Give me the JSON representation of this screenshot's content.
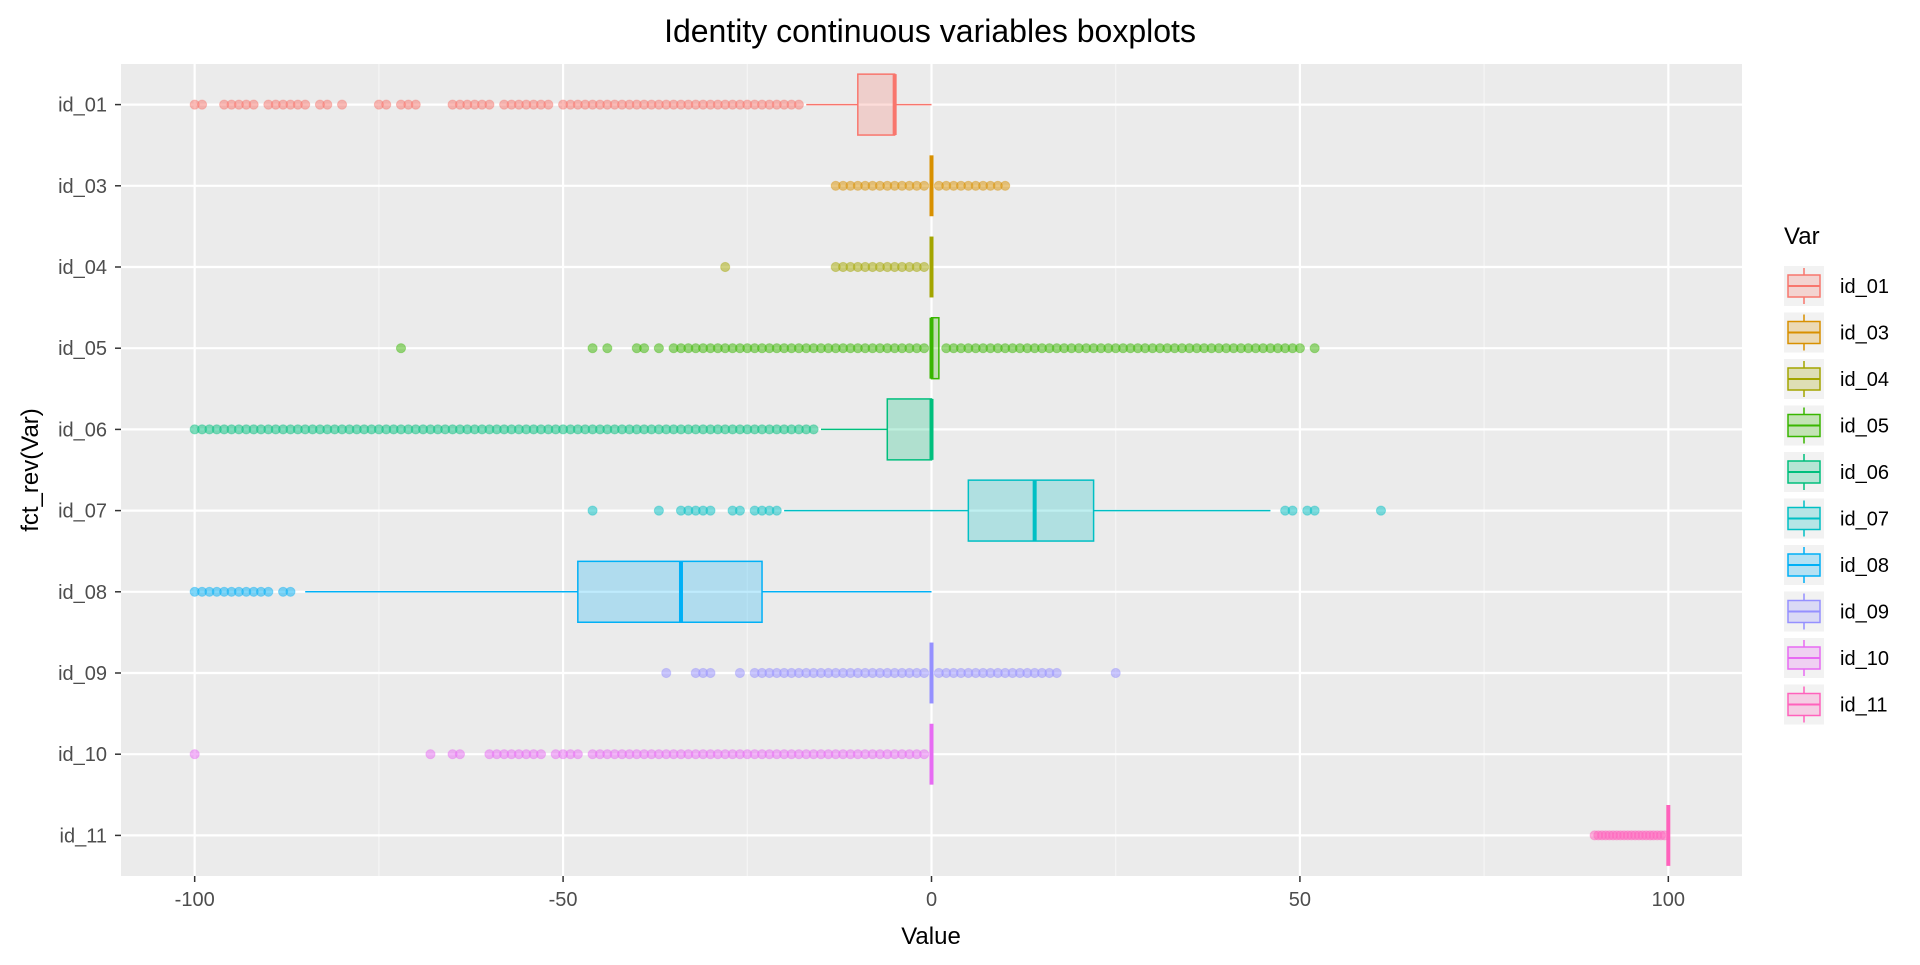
{
  "chart_data": {
    "type": "boxplot",
    "orientation": "horizontal",
    "title": "Identity continuous variables boxplots",
    "xlabel": "Value",
    "ylabel": "fct_rev(Var)",
    "xlim": [
      -110,
      110
    ],
    "xticks": [
      -100,
      -50,
      0,
      50,
      100
    ],
    "xtick_labels": [
      "-100",
      "-50",
      "0",
      "50",
      "100"
    ],
    "grid": true,
    "legend": {
      "title": "Var",
      "position": "right"
    },
    "series": [
      {
        "name": "id_01",
        "color": "#F8766D",
        "box": {
          "whisker_low": -17,
          "q1": -10,
          "median": -5,
          "q3": -5,
          "whisker_high": 0
        },
        "outliers": [
          -100,
          -99,
          -96,
          -95,
          -94,
          -93,
          -92,
          -90,
          -89,
          -88,
          -87,
          -86,
          -85,
          -83,
          -82,
          -80,
          -75,
          -74,
          -72,
          -71,
          -70,
          -65,
          -64,
          -63,
          -62,
          -61,
          -60,
          -58,
          -57,
          -56,
          -55,
          -54,
          -53,
          -52,
          -50,
          -49,
          -48,
          -47,
          -46,
          -45,
          -44,
          -43,
          -42,
          -41,
          -40,
          -39,
          -38,
          -37,
          -36,
          -35,
          -34,
          -33,
          -32,
          -31,
          -30,
          -29,
          -28,
          -27,
          -26,
          -25,
          -24,
          -23,
          -22,
          -21,
          -20,
          -19,
          -18
        ]
      },
      {
        "name": "id_03",
        "color": "#D89000",
        "box": {
          "whisker_low": 0,
          "q1": 0,
          "median": 0,
          "q3": 0,
          "whisker_high": 0
        },
        "outliers": [
          -13,
          -12,
          -11,
          -10,
          -9,
          -8,
          -7,
          -6,
          -5,
          -4,
          -3,
          -2,
          -1,
          1,
          2,
          3,
          4,
          5,
          6,
          7,
          8,
          9,
          10
        ]
      },
      {
        "name": "id_04",
        "color": "#A3A500",
        "box": {
          "whisker_low": 0,
          "q1": 0,
          "median": 0,
          "q3": 0,
          "whisker_high": 0
        },
        "outliers": [
          -28,
          -13,
          -12,
          -11,
          -10,
          -9,
          -8,
          -7,
          -6,
          -5,
          -4,
          -3,
          -2,
          -1
        ]
      },
      {
        "name": "id_05",
        "color": "#39B600",
        "box": {
          "whisker_low": 0,
          "q1": 0,
          "median": 0,
          "q3": 1,
          "whisker_high": 1
        },
        "outliers": [
          -72,
          -46,
          -44,
          -40,
          -39,
          -37,
          -35,
          -34,
          -33,
          -32,
          -31,
          -30,
          -29,
          -28,
          -27,
          -26,
          -25,
          -24,
          -23,
          -22,
          -21,
          -20,
          -19,
          -18,
          -17,
          -16,
          -15,
          -14,
          -13,
          -12,
          -11,
          -10,
          -9,
          -8,
          -7,
          -6,
          -5,
          -4,
          -3,
          -2,
          -1,
          2,
          3,
          4,
          5,
          6,
          7,
          8,
          9,
          10,
          11,
          12,
          13,
          14,
          15,
          16,
          17,
          18,
          19,
          20,
          21,
          22,
          23,
          24,
          25,
          26,
          27,
          28,
          29,
          30,
          31,
          32,
          33,
          34,
          35,
          36,
          37,
          38,
          39,
          40,
          41,
          42,
          43,
          44,
          45,
          46,
          47,
          48,
          49,
          50,
          52
        ]
      },
      {
        "name": "id_06",
        "color": "#00BF7D",
        "box": {
          "whisker_low": -15,
          "q1": -6,
          "median": 0,
          "q3": 0,
          "whisker_high": 0
        },
        "outliers": [
          -100,
          -99,
          -98,
          -97,
          -96,
          -95,
          -94,
          -93,
          -92,
          -91,
          -90,
          -89,
          -88,
          -87,
          -86,
          -85,
          -84,
          -83,
          -82,
          -81,
          -80,
          -79,
          -78,
          -77,
          -76,
          -75,
          -74,
          -73,
          -72,
          -71,
          -70,
          -69,
          -68,
          -67,
          -66,
          -65,
          -64,
          -63,
          -62,
          -61,
          -60,
          -59,
          -58,
          -57,
          -56,
          -55,
          -54,
          -53,
          -52,
          -51,
          -50,
          -49,
          -48,
          -47,
          -46,
          -45,
          -44,
          -43,
          -42,
          -41,
          -40,
          -39,
          -38,
          -37,
          -36,
          -35,
          -34,
          -33,
          -32,
          -31,
          -30,
          -29,
          -28,
          -27,
          -26,
          -25,
          -24,
          -23,
          -22,
          -21,
          -20,
          -19,
          -18,
          -17,
          -16
        ]
      },
      {
        "name": "id_07",
        "color": "#00BFC4",
        "box": {
          "whisker_low": -20,
          "q1": 5,
          "median": 14,
          "q3": 22,
          "whisker_high": 46
        },
        "outliers": [
          -46,
          -37,
          -34,
          -33,
          -32,
          -31,
          -30,
          -27,
          -26,
          -24,
          -23,
          -22,
          -21,
          48,
          49,
          51,
          52,
          61
        ]
      },
      {
        "name": "id_08",
        "color": "#00B0F6",
        "box": {
          "whisker_low": -85,
          "q1": -48,
          "median": -34,
          "q3": -23,
          "whisker_high": 0
        },
        "outliers": [
          -100,
          -99,
          -98,
          -97,
          -96,
          -95,
          -94,
          -93,
          -92,
          -91,
          -90,
          -88,
          -87
        ]
      },
      {
        "name": "id_09",
        "color": "#9590FF",
        "box": {
          "whisker_low": 0,
          "q1": 0,
          "median": 0,
          "q3": 0,
          "whisker_high": 0
        },
        "outliers": [
          -36,
          -32,
          -31,
          -30,
          -26,
          -24,
          -23,
          -22,
          -21,
          -20,
          -19,
          -18,
          -17,
          -16,
          -15,
          -14,
          -13,
          -12,
          -11,
          -10,
          -9,
          -8,
          -7,
          -6,
          -5,
          -4,
          -3,
          -2,
          -1,
          1,
          2,
          3,
          4,
          5,
          6,
          7,
          8,
          9,
          10,
          11,
          12,
          13,
          14,
          15,
          16,
          17,
          25
        ]
      },
      {
        "name": "id_10",
        "color": "#E76BF3",
        "box": {
          "whisker_low": 0,
          "q1": 0,
          "median": 0,
          "q3": 0,
          "whisker_high": 0
        },
        "outliers": [
          -100,
          -68,
          -65,
          -64,
          -60,
          -59,
          -58,
          -57,
          -56,
          -55,
          -54,
          -53,
          -51,
          -50,
          -49,
          -48,
          -46,
          -45,
          -44,
          -43,
          -42,
          -41,
          -40,
          -39,
          -38,
          -37,
          -36,
          -35,
          -34,
          -33,
          -32,
          -31,
          -30,
          -29,
          -28,
          -27,
          -26,
          -25,
          -24,
          -23,
          -22,
          -21,
          -20,
          -19,
          -18,
          -17,
          -16,
          -15,
          -14,
          -13,
          -12,
          -11,
          -10,
          -9,
          -8,
          -7,
          -6,
          -5,
          -4,
          -3,
          -2,
          -1
        ]
      },
      {
        "name": "id_11",
        "color": "#FF62BC",
        "box": {
          "whisker_low": 100,
          "q1": 100,
          "median": 100,
          "q3": 100,
          "whisker_high": 100
        },
        "outliers": [
          90,
          90.5,
          91,
          91.5,
          92,
          92.5,
          93,
          93.5,
          94,
          94.5,
          95,
          95.5,
          96,
          96.5,
          97,
          97.5,
          98,
          98.5,
          99,
          99.5
        ]
      }
    ]
  }
}
